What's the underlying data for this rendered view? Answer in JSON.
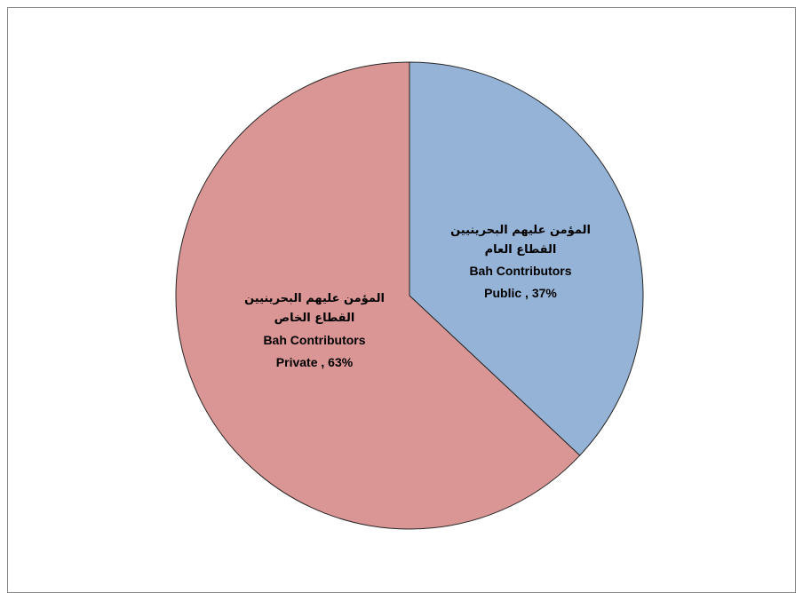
{
  "chart_data": {
    "type": "pie",
    "slices": [
      {
        "label_ar_1": "المؤمن عليهم البحرينيين",
        "label_ar_2": "القطاع العام",
        "label_en": "Bah Contributors",
        "label_en_2": "Public , 37%",
        "value": 37,
        "color": "#95b3d7"
      },
      {
        "label_ar_1": "المؤمن عليهم البحرينيين",
        "label_ar_2": "القطاع الخاص",
        "label_en": "Bah Contributors",
        "label_en_2": "Private , 63%",
        "value": 63,
        "color": "#d99694"
      }
    ],
    "start_angle_deg": 0,
    "direction": "clockwise",
    "edge_color": "#262626"
  }
}
